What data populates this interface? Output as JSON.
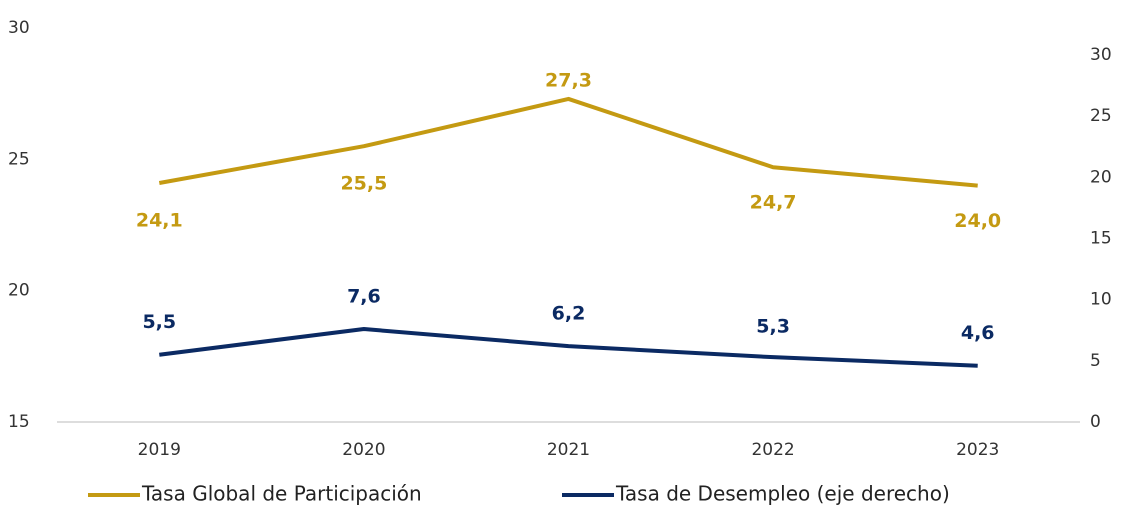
{
  "chart_data": {
    "type": "line",
    "categories": [
      "2019",
      "2020",
      "2021",
      "2022",
      "2023"
    ],
    "series": [
      {
        "name": "Tasa Global de Participación",
        "color": "#c49a12",
        "axis": "y",
        "values": [
          24.1,
          25.5,
          27.3,
          24.7,
          24.0
        ],
        "value_labels": [
          "24,1",
          "25,5",
          "27,3",
          "24,7",
          "24,0"
        ]
      },
      {
        "name": "Tasa de Desempleo (eje derecho)",
        "color": "#0b2a63",
        "axis": "y2",
        "values": [
          5.5,
          7.6,
          6.2,
          5.3,
          4.6
        ],
        "value_labels": [
          "5,5",
          "7,6",
          "6,2",
          "5,3",
          "4,6"
        ]
      }
    ],
    "ylim": [
      15,
      30
    ],
    "yticks": [
      15,
      20,
      25,
      30
    ],
    "y2lim": [
      0,
      30
    ],
    "y2ticks": [
      0,
      5,
      10,
      15,
      20,
      25,
      30
    ],
    "legend": "bottom"
  }
}
